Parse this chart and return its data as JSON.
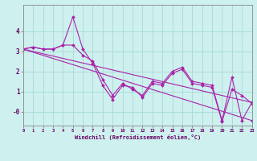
{
  "xlabel": "Windchill (Refroidissement éolien,°C)",
  "bg_color": "#cef0ee",
  "grid_color": "#aaddda",
  "line_color": "#aa22aa",
  "xlim": [
    0,
    23
  ],
  "ylim": [
    -0.7,
    5.3
  ],
  "xticks": [
    0,
    1,
    2,
    3,
    4,
    5,
    6,
    7,
    8,
    9,
    10,
    11,
    12,
    13,
    14,
    15,
    16,
    17,
    18,
    19,
    20,
    21,
    22,
    23
  ],
  "ytick_vals": [
    0,
    1,
    2,
    3,
    4
  ],
  "ytick_labels": [
    "-0",
    "1",
    "2",
    "3",
    "4"
  ],
  "series": [
    {
      "x": [
        0,
        1,
        2,
        3,
        4,
        5,
        6,
        7,
        8,
        9,
        10,
        11,
        12,
        13,
        14,
        15,
        16,
        17,
        18,
        19,
        20,
        21,
        22,
        23
      ],
      "y": [
        3.1,
        3.2,
        3.1,
        3.1,
        3.3,
        4.7,
        3.1,
        2.4,
        1.3,
        0.6,
        1.3,
        1.2,
        0.7,
        1.4,
        1.3,
        1.9,
        2.1,
        1.4,
        1.3,
        1.2,
        -0.5,
        1.1,
        0.8,
        0.4
      ]
    },
    {
      "x": [
        0,
        1,
        2,
        3,
        4,
        5,
        6,
        7,
        8,
        9,
        10,
        11,
        12,
        13,
        14,
        15,
        16,
        17,
        18,
        19,
        20,
        21,
        22,
        23
      ],
      "y": [
        3.1,
        3.2,
        3.1,
        3.1,
        3.3,
        3.3,
        2.8,
        2.5,
        1.6,
        0.8,
        1.4,
        1.1,
        0.8,
        1.5,
        1.4,
        2.0,
        2.2,
        1.5,
        1.4,
        1.3,
        -0.45,
        1.7,
        -0.45,
        0.45
      ]
    },
    {
      "x": [
        0,
        23
      ],
      "y": [
        3.1,
        0.45
      ]
    },
    {
      "x": [
        0,
        23
      ],
      "y": [
        3.1,
        -0.45
      ]
    }
  ]
}
